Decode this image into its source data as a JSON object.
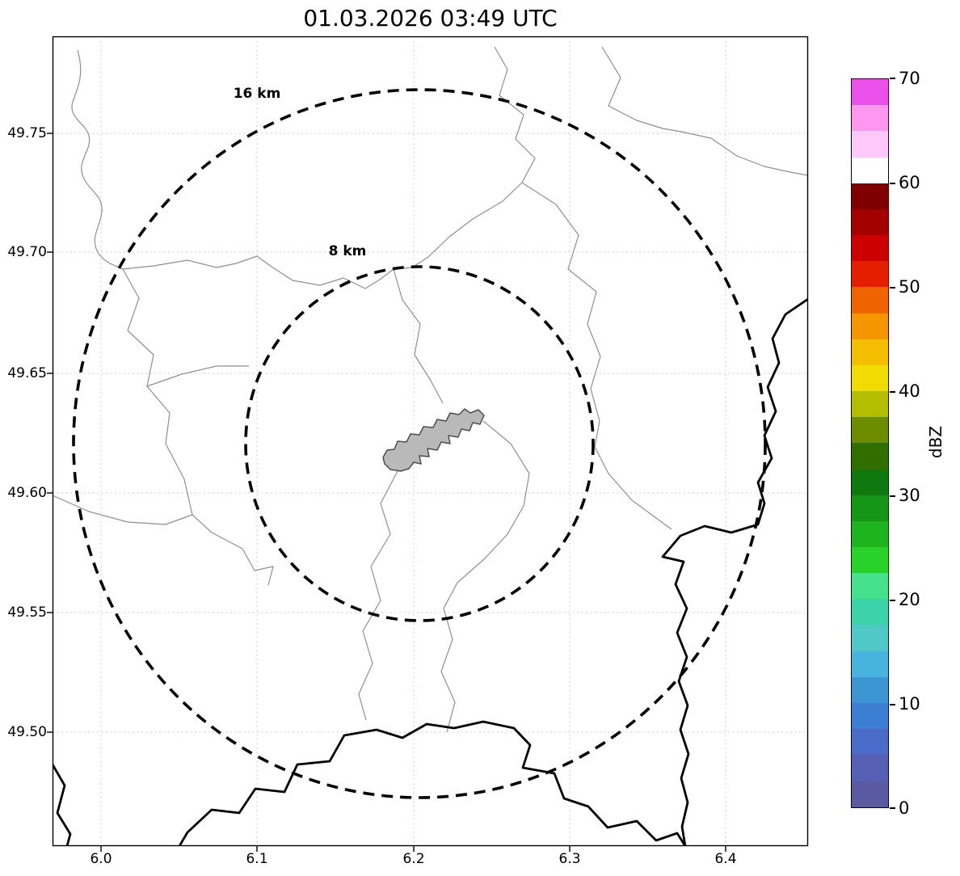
{
  "title": "01.03.2026 03:49 UTC",
  "map": {
    "x_tick_labels": [
      "6.0",
      "6.1",
      "6.2",
      "6.3",
      "6.4"
    ],
    "y_tick_labels": [
      "49.75",
      "49.70",
      "49.65",
      "49.60",
      "49.55",
      "49.50"
    ],
    "rings": [
      {
        "label": "16 km"
      },
      {
        "label": "8 km"
      }
    ],
    "city_fill": "#b9b9b9",
    "boundary_color": "#8f8f8f",
    "border_color": "#000000"
  },
  "colorbar": {
    "label": "dBZ",
    "tick_labels": [
      "70",
      "60",
      "50",
      "40",
      "30",
      "20",
      "10",
      "0"
    ],
    "min": 0,
    "max": 70,
    "colors_bottom_to_top": [
      "#5a5aa0",
      "#5560b4",
      "#4a6cc8",
      "#3c7fd2",
      "#3c96d2",
      "#46b4dc",
      "#50c8c8",
      "#3cd2aa",
      "#46e18c",
      "#28d228",
      "#1eb41e",
      "#169616",
      "#0f780f",
      "#316e00",
      "#6e8c00",
      "#b4be00",
      "#f0dc00",
      "#f5be00",
      "#f59600",
      "#f06400",
      "#e61e00",
      "#cd0000",
      "#a50000",
      "#800000",
      "#ffffff",
      "#ffc8fa",
      "#ff96f0",
      "#eb50eb"
    ]
  }
}
